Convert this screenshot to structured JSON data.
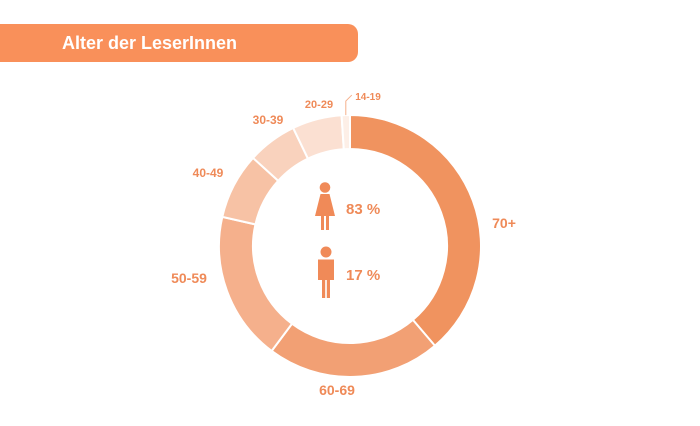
{
  "title": "Alter der LeserInnen",
  "colors": {
    "banner": "#f9905a",
    "label": "#ef8a58",
    "icon": "#f08a58"
  },
  "gender": {
    "female": {
      "icon": "female-icon",
      "value": "83 %"
    },
    "male": {
      "icon": "male-icon",
      "value": "17 %"
    }
  },
  "chart_data": {
    "type": "pie",
    "style": "donut",
    "title": "",
    "categories": [
      "70+",
      "60-69",
      "50-59",
      "40-49",
      "30-39",
      "20-29",
      "14-19"
    ],
    "values": [
      38,
      21,
      18,
      8,
      6,
      6,
      1
    ],
    "colors": [
      "#f0935f",
      "#f2a074",
      "#f5b08c",
      "#f7c2a5",
      "#f9d2bd",
      "#fbe0d2",
      "#fdefe7"
    ]
  }
}
